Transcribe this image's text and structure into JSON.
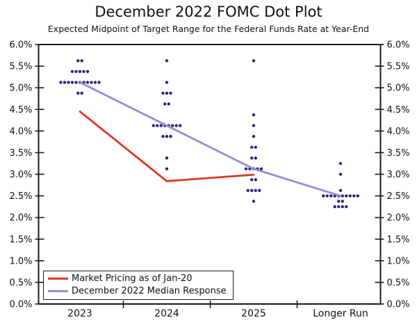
{
  "title": "December 2022 FOMC Dot Plot",
  "subtitle": "Expected Midpoint of Target Range for the Federal Funds Rate at Year-End",
  "chart_data": {
    "type": "scatter",
    "title": "December 2022 FOMC Dot Plot",
    "subtitle": "Expected Midpoint of Target Range for the Federal Funds Rate at Year-End",
    "categories": [
      "2023",
      "2024",
      "2025",
      "Longer Run"
    ],
    "ylim": [
      0.0,
      6.0
    ],
    "y_tick_step": 0.5,
    "y_ticks": [
      "0.0%",
      "0.5%",
      "1.0%",
      "1.5%",
      "2.0%",
      "2.5%",
      "3.0%",
      "3.5%",
      "4.0%",
      "4.5%",
      "5.0%",
      "5.5%",
      "6.0%"
    ],
    "grid": false,
    "dot_color": "#2b2577",
    "dot_columns": [
      {
        "category": "2023",
        "stacks": [
          {
            "value": 5.625,
            "count": 2
          },
          {
            "value": 5.375,
            "count": 5
          },
          {
            "value": 5.125,
            "count": 11
          },
          {
            "value": 4.875,
            "count": 2
          }
        ]
      },
      {
        "category": "2024",
        "stacks": [
          {
            "value": 5.625,
            "count": 1
          },
          {
            "value": 5.125,
            "count": 1
          },
          {
            "value": 4.875,
            "count": 3
          },
          {
            "value": 4.625,
            "count": 2
          },
          {
            "value": 4.125,
            "count": 8
          },
          {
            "value": 3.875,
            "count": 3
          },
          {
            "value": 3.375,
            "count": 1
          },
          {
            "value": 3.125,
            "count": 1
          }
        ]
      },
      {
        "category": "2025",
        "stacks": [
          {
            "value": 5.625,
            "count": 1
          },
          {
            "value": 4.375,
            "count": 1
          },
          {
            "value": 4.125,
            "count": 1
          },
          {
            "value": 3.875,
            "count": 1
          },
          {
            "value": 3.625,
            "count": 2
          },
          {
            "value": 3.375,
            "count": 2
          },
          {
            "value": 3.125,
            "count": 5
          },
          {
            "value": 2.875,
            "count": 2
          },
          {
            "value": 2.625,
            "count": 4
          },
          {
            "value": 2.375,
            "count": 1
          }
        ]
      },
      {
        "category": "Longer Run",
        "stacks": [
          {
            "value": 3.25,
            "count": 1
          },
          {
            "value": 3.0,
            "count": 1
          },
          {
            "value": 2.625,
            "count": 1
          },
          {
            "value": 2.5,
            "count": 10
          },
          {
            "value": 2.375,
            "count": 2
          },
          {
            "value": 2.25,
            "count": 4
          }
        ]
      }
    ],
    "series": [
      {
        "name": "Market Pricing as of Jan-20",
        "color": "#e13427",
        "points": [
          {
            "category": "2023",
            "value": 4.45
          },
          {
            "category": "2024",
            "value": 2.84
          },
          {
            "category": "2025",
            "value": 2.99
          }
        ]
      },
      {
        "name": "December 2022 Median Response",
        "color": "#978bdd",
        "points": [
          {
            "category": "2023",
            "value": 5.125
          },
          {
            "category": "2024",
            "value": 4.125
          },
          {
            "category": "2025",
            "value": 3.125
          },
          {
            "category": "Longer Run",
            "value": 2.5
          }
        ]
      }
    ],
    "legend_position": "bottom-left"
  }
}
